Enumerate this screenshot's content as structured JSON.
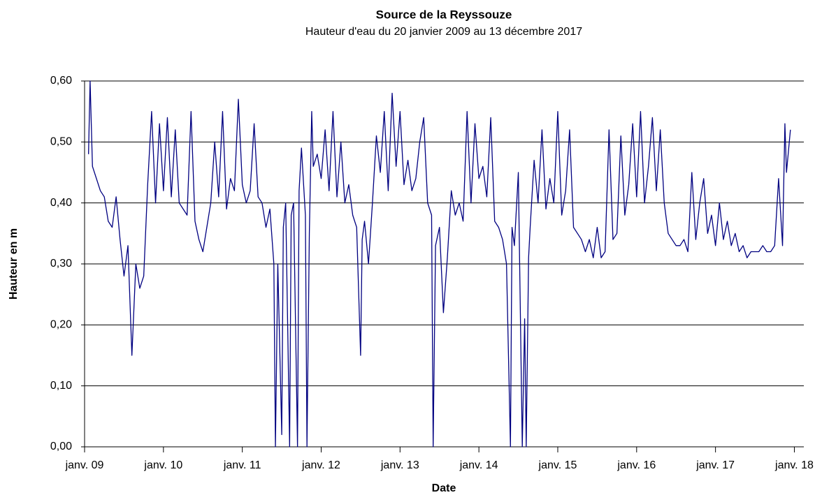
{
  "chart_data": {
    "type": "line",
    "title": "Source de la Reyssouze",
    "subtitle": "Hauteur d'eau du 20 janvier 2009 au 13 décembre 2017",
    "y_label": "Hauteur en m",
    "x_label": "Date",
    "color": "#000080",
    "grid": true,
    "xlim": [
      2009.0,
      2018.12
    ],
    "ylim": [
      0,
      0.6
    ],
    "yticks": [
      {
        "value": 0,
        "label": "0,00"
      },
      {
        "value": 0.1,
        "label": "0,10"
      },
      {
        "value": 0.2,
        "label": "0,20"
      },
      {
        "value": 0.3,
        "label": "0,30"
      },
      {
        "value": 0.4,
        "label": "0,40"
      },
      {
        "value": 0.5,
        "label": "0,50"
      },
      {
        "value": 0.6,
        "label": "0,60"
      }
    ],
    "xticks": [
      {
        "value": 2009,
        "label": "janv. 09"
      },
      {
        "value": 2010,
        "label": "janv. 10"
      },
      {
        "value": 2011,
        "label": "janv. 11"
      },
      {
        "value": 2012,
        "label": "janv. 12"
      },
      {
        "value": 2013,
        "label": "janv. 13"
      },
      {
        "value": 2014,
        "label": "janv. 14"
      },
      {
        "value": 2015,
        "label": "janv. 15"
      },
      {
        "value": 2016,
        "label": "janv. 16"
      },
      {
        "value": 2017,
        "label": "janv. 17"
      },
      {
        "value": 2018,
        "label": "janv. 18"
      }
    ],
    "x": [
      2009.05,
      2009.07,
      2009.1,
      2009.15,
      2009.2,
      2009.25,
      2009.3,
      2009.35,
      2009.4,
      2009.45,
      2009.5,
      2009.55,
      2009.6,
      2009.65,
      2009.7,
      2009.75,
      2009.8,
      2009.85,
      2009.9,
      2009.95,
      2010,
      2010.05,
      2010.1,
      2010.15,
      2010.2,
      2010.25,
      2010.3,
      2010.35,
      2010.4,
      2010.45,
      2010.5,
      2010.55,
      2010.6,
      2010.65,
      2010.7,
      2010.75,
      2010.8,
      2010.85,
      2010.9,
      2010.95,
      2011,
      2011.05,
      2011.1,
      2011.15,
      2011.2,
      2011.25,
      2011.3,
      2011.35,
      2011.4,
      2011.42,
      2011.45,
      2011.5,
      2011.52,
      2011.55,
      2011.6,
      2011.62,
      2011.65,
      2011.7,
      2011.72,
      2011.75,
      2011.8,
      2011.82,
      2011.85,
      2011.88,
      2011.9,
      2011.95,
      2012,
      2012.05,
      2012.1,
      2012.15,
      2012.2,
      2012.25,
      2012.3,
      2012.35,
      2012.4,
      2012.45,
      2012.5,
      2012.52,
      2012.55,
      2012.6,
      2012.65,
      2012.7,
      2012.75,
      2012.8,
      2012.85,
      2012.9,
      2012.95,
      2013,
      2013.05,
      2013.1,
      2013.15,
      2013.2,
      2013.25,
      2013.3,
      2013.35,
      2013.4,
      2013.42,
      2013.45,
      2013.5,
      2013.55,
      2013.6,
      2013.65,
      2013.7,
      2013.75,
      2013.8,
      2013.85,
      2013.9,
      2013.95,
      2014,
      2014.05,
      2014.1,
      2014.15,
      2014.2,
      2014.25,
      2014.3,
      2014.35,
      2014.4,
      2014.42,
      2014.45,
      2014.5,
      2014.55,
      2014.58,
      2014.6,
      2014.63,
      2014.65,
      2014.7,
      2014.75,
      2014.8,
      2014.85,
      2014.9,
      2014.95,
      2015,
      2015.05,
      2015.1,
      2015.15,
      2015.2,
      2015.25,
      2015.3,
      2015.35,
      2015.4,
      2015.45,
      2015.5,
      2015.55,
      2015.6,
      2015.65,
      2015.7,
      2015.75,
      2015.8,
      2015.85,
      2015.9,
      2015.95,
      2016,
      2016.05,
      2016.1,
      2016.15,
      2016.2,
      2016.25,
      2016.3,
      2016.35,
      2016.4,
      2016.45,
      2016.5,
      2016.55,
      2016.6,
      2016.65,
      2016.7,
      2016.75,
      2016.8,
      2016.85,
      2016.9,
      2016.95,
      2017,
      2017.05,
      2017.1,
      2017.15,
      2017.2,
      2017.25,
      2017.3,
      2017.35,
      2017.4,
      2017.45,
      2017.5,
      2017.55,
      2017.6,
      2017.65,
      2017.7,
      2017.75,
      2017.8,
      2017.85,
      2017.88,
      2017.9,
      2017.95
    ],
    "values": [
      0.48,
      0.6,
      0.46,
      0.44,
      0.42,
      0.41,
      0.37,
      0.36,
      0.41,
      0.34,
      0.28,
      0.33,
      0.15,
      0.3,
      0.26,
      0.28,
      0.43,
      0.55,
      0.4,
      0.53,
      0.42,
      0.54,
      0.41,
      0.52,
      0.4,
      0.39,
      0.38,
      0.55,
      0.37,
      0.34,
      0.32,
      0.36,
      0.4,
      0.5,
      0.41,
      0.55,
      0.39,
      0.44,
      0.42,
      0.57,
      0.43,
      0.4,
      0.42,
      0.53,
      0.41,
      0.4,
      0.36,
      0.39,
      0.3,
      0,
      0.3,
      0.02,
      0.36,
      0.4,
      0,
      0.38,
      0.4,
      0,
      0.42,
      0.49,
      0.38,
      0,
      0.35,
      0.55,
      0.46,
      0.48,
      0.44,
      0.52,
      0.42,
      0.55,
      0.41,
      0.5,
      0.4,
      0.43,
      0.38,
      0.36,
      0.15,
      0.34,
      0.37,
      0.3,
      0.4,
      0.51,
      0.45,
      0.55,
      0.42,
      0.58,
      0.46,
      0.55,
      0.43,
      0.47,
      0.42,
      0.44,
      0.5,
      0.54,
      0.4,
      0.38,
      0,
      0.33,
      0.36,
      0.22,
      0.31,
      0.42,
      0.38,
      0.4,
      0.37,
      0.55,
      0.4,
      0.53,
      0.44,
      0.46,
      0.41,
      0.54,
      0.37,
      0.36,
      0.34,
      0.3,
      0,
      0.36,
      0.33,
      0.45,
      0,
      0.21,
      0,
      0.31,
      0.36,
      0.47,
      0.4,
      0.52,
      0.39,
      0.44,
      0.4,
      0.55,
      0.38,
      0.42,
      0.52,
      0.36,
      0.35,
      0.34,
      0.32,
      0.34,
      0.31,
      0.36,
      0.31,
      0.32,
      0.52,
      0.34,
      0.35,
      0.51,
      0.38,
      0.43,
      0.53,
      0.41,
      0.55,
      0.4,
      0.46,
      0.54,
      0.42,
      0.52,
      0.4,
      0.35,
      0.34,
      0.33,
      0.33,
      0.34,
      0.32,
      0.45,
      0.34,
      0.4,
      0.44,
      0.35,
      0.38,
      0.33,
      0.4,
      0.34,
      0.37,
      0.33,
      0.35,
      0.32,
      0.33,
      0.31,
      0.32,
      0.32,
      0.32,
      0.33,
      0.32,
      0.32,
      0.33,
      0.44,
      0.33,
      0.53,
      0.45,
      0.52
    ]
  }
}
